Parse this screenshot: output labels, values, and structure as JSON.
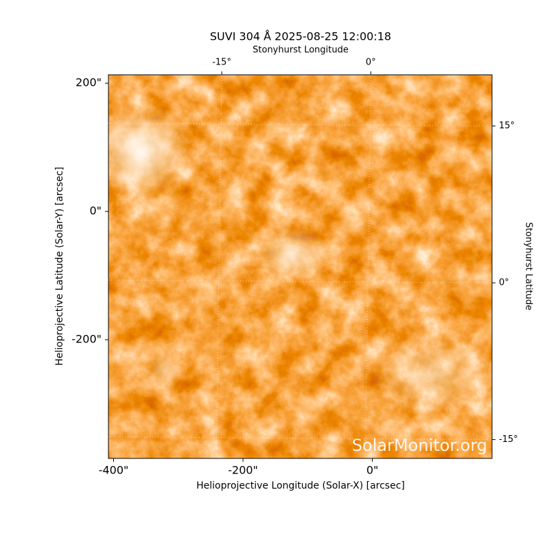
{
  "chart_data": {
    "type": "image",
    "title": "SUVI 304 Å 2025-08-25 12:00:18",
    "xlabel": "Helioprojective Longitude (Solar-X) [arcsec]",
    "ylabel": "Helioprojective Latitude (Solar-Y) [arcsec]",
    "x2label": "Stonyhurst Longitude",
    "y2label": "Stonyhurst Latitude",
    "watermark": "SolarMonitor.org",
    "xlim": [
      -408,
      185
    ],
    "ylim": [
      -385,
      213
    ],
    "xticks": [
      {
        "value": -400,
        "label": "-400\""
      },
      {
        "value": -200,
        "label": "-200\""
      },
      {
        "value": 0,
        "label": "0\""
      }
    ],
    "yticks": [
      {
        "value": -200,
        "label": "-200\""
      },
      {
        "value": 0,
        "label": "0\""
      },
      {
        "value": 200,
        "label": "200\""
      }
    ],
    "x2lim": [
      -26.4,
      12.2
    ],
    "x2ticks": [
      {
        "value": -15,
        "label": "-15°"
      },
      {
        "value": 0,
        "label": "0°"
      }
    ],
    "y2lim": [
      -16.8,
      19.9
    ],
    "y2ticks": [
      {
        "value": -15,
        "label": "-15°"
      },
      {
        "value": 0,
        "label": "0°"
      },
      {
        "value": 15,
        "label": "15°"
      }
    ],
    "grid": true
  }
}
